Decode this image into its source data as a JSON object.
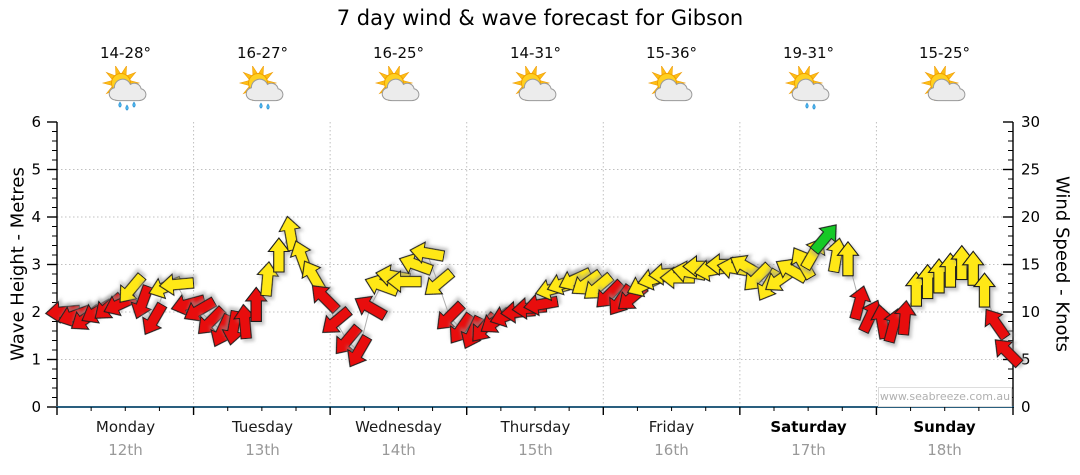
{
  "title": "7 day wind & wave forecast for Gibson",
  "watermark": "www.seabreeze.com.au",
  "axis_left": {
    "label": "Wave Height - Metres",
    "ticks": [
      0,
      1,
      2,
      3,
      4,
      5,
      6
    ],
    "range": [
      0,
      6
    ]
  },
  "axis_right": {
    "label": "Wind Speed - Knots",
    "ticks": [
      0,
      5,
      10,
      15,
      20,
      25,
      30
    ],
    "range": [
      0,
      30
    ]
  },
  "days": [
    {
      "name": "Monday",
      "date": "12th",
      "temp": "14-28°",
      "weekend": false,
      "icon": {
        "type": "sun-cloud-showers",
        "drops": 3
      }
    },
    {
      "name": "Tuesday",
      "date": "13th",
      "temp": "16-27°",
      "weekend": false,
      "icon": {
        "type": "sun-cloud-showers",
        "drops": 2
      }
    },
    {
      "name": "Wednesday",
      "date": "14th",
      "temp": "16-25°",
      "weekend": false,
      "icon": {
        "type": "sun-cloud",
        "drops": 0
      }
    },
    {
      "name": "Thursday",
      "date": "15th",
      "temp": "14-31°",
      "weekend": false,
      "icon": {
        "type": "sun-cloud",
        "drops": 0
      }
    },
    {
      "name": "Friday",
      "date": "16th",
      "temp": "15-36°",
      "weekend": false,
      "icon": {
        "type": "sun-cloud",
        "drops": 0
      }
    },
    {
      "name": "Saturday",
      "date": "17th",
      "temp": "19-31°",
      "weekend": true,
      "icon": {
        "type": "sun-cloud-showers",
        "drops": 2
      }
    },
    {
      "name": "Sunday",
      "date": "18th",
      "temp": "15-25°",
      "weekend": true,
      "icon": {
        "type": "sun-cloud",
        "drops": 0
      }
    }
  ],
  "colors": {
    "arrow_red": "#e81010",
    "arrow_yellow": "#ffe819",
    "arrow_green": "#16c926",
    "arrow_outline": "#1c1c1c",
    "axis": "#000000",
    "bottom_axis": "#2a5f7f",
    "grid": "#c0c0c0",
    "connector": "#adadad",
    "date_text": "#999999"
  },
  "chart_data": {
    "type": "wind-barb-timeseries",
    "title": "7 day wind & wave forecast for Gibson",
    "ylabel_left": "Wave Height - Metres",
    "ylim_left": [
      0,
      6
    ],
    "ylabel_right": "Wind Speed - Knots",
    "ylim_right": [
      0,
      30
    ],
    "x_categories": [
      "Monday 12th",
      "Tuesday 13th",
      "Wednesday 14th",
      "Thursday 15th",
      "Friday 16th",
      "Saturday 17th",
      "Sunday 18th"
    ],
    "grid": "dotted, horizontal every 5 knots, vertical at day boundaries",
    "arrow_fields": [
      "hours_from_monday_00",
      "wind_speed_knots",
      "direction_deg_pointing_0N",
      "color"
    ],
    "arrows": [
      [
        1,
        10.0,
        265,
        "r"
      ],
      [
        3,
        9.6,
        250,
        "r"
      ],
      [
        5,
        9.3,
        235,
        "r"
      ],
      [
        7,
        10.0,
        240,
        "r"
      ],
      [
        9,
        10.5,
        230,
        "r"
      ],
      [
        11,
        10.8,
        245,
        "r"
      ],
      [
        13,
        12.4,
        220,
        "y"
      ],
      [
        15,
        11.0,
        200,
        "r"
      ],
      [
        17,
        9.2,
        210,
        "r"
      ],
      [
        19,
        12.6,
        250,
        "y"
      ],
      [
        21,
        12.9,
        265,
        "y"
      ],
      [
        23,
        10.8,
        255,
        "r"
      ],
      [
        25,
        10.2,
        240,
        "r"
      ],
      [
        27,
        9.0,
        225,
        "r"
      ],
      [
        29,
        8.0,
        205,
        "r"
      ],
      [
        31,
        8.3,
        190,
        "r"
      ],
      [
        33,
        9.0,
        355,
        "r"
      ],
      [
        35,
        10.8,
        0,
        "r"
      ],
      [
        37,
        13.5,
        5,
        "y"
      ],
      [
        39,
        16.0,
        0,
        "y"
      ],
      [
        41,
        18.3,
        350,
        "y"
      ],
      [
        43,
        15.8,
        340,
        "y"
      ],
      [
        45,
        13.8,
        330,
        "y"
      ],
      [
        47,
        11.5,
        315,
        "r"
      ],
      [
        49,
        9.0,
        230,
        "r"
      ],
      [
        51,
        7.0,
        220,
        "r"
      ],
      [
        53,
        5.8,
        210,
        "r"
      ],
      [
        55,
        10.5,
        300,
        "r"
      ],
      [
        57,
        12.8,
        290,
        "y"
      ],
      [
        59,
        13.8,
        280,
        "y"
      ],
      [
        61,
        13.2,
        270,
        "y"
      ],
      [
        63,
        15.0,
        290,
        "y"
      ],
      [
        65,
        16.2,
        280,
        "y"
      ],
      [
        67,
        13.0,
        230,
        "y"
      ],
      [
        69,
        9.5,
        225,
        "r"
      ],
      [
        71,
        8.2,
        215,
        "r"
      ],
      [
        73,
        7.8,
        205,
        "r"
      ],
      [
        75,
        8.3,
        220,
        "r"
      ],
      [
        77,
        9.0,
        235,
        "r"
      ],
      [
        79,
        9.6,
        250,
        "r"
      ],
      [
        81,
        10.0,
        265,
        "r"
      ],
      [
        83,
        10.4,
        265,
        "r"
      ],
      [
        85,
        10.8,
        260,
        "r"
      ],
      [
        87,
        12.4,
        255,
        "y"
      ],
      [
        89,
        13.0,
        250,
        "y"
      ],
      [
        91,
        13.4,
        245,
        "y"
      ],
      [
        93,
        13.0,
        235,
        "y"
      ],
      [
        95,
        12.6,
        230,
        "y"
      ],
      [
        97,
        11.8,
        225,
        "r"
      ],
      [
        99,
        11.2,
        215,
        "r"
      ],
      [
        101,
        11.5,
        230,
        "r"
      ],
      [
        103,
        12.8,
        245,
        "y"
      ],
      [
        105,
        13.5,
        255,
        "y"
      ],
      [
        107,
        14.0,
        265,
        "y"
      ],
      [
        109,
        13.6,
        270,
        "y"
      ],
      [
        111,
        14.2,
        280,
        "y"
      ],
      [
        113,
        14.8,
        270,
        "y"
      ],
      [
        115,
        14.4,
        260,
        "y"
      ],
      [
        117,
        15.0,
        270,
        "y"
      ],
      [
        119,
        14.6,
        280,
        "y"
      ],
      [
        121,
        14.8,
        300,
        "y"
      ],
      [
        123,
        13.6,
        225,
        "y"
      ],
      [
        125,
        12.8,
        210,
        "y"
      ],
      [
        127,
        13.4,
        235,
        "y"
      ],
      [
        129,
        14.4,
        300,
        "y"
      ],
      [
        131,
        15.2,
        330,
        "y"
      ],
      [
        133,
        16.2,
        30,
        "y"
      ],
      [
        135,
        17.8,
        40,
        "g"
      ],
      [
        137,
        16.0,
        10,
        "y"
      ],
      [
        139,
        15.6,
        0,
        "y"
      ],
      [
        141,
        11.0,
        15,
        "r"
      ],
      [
        143,
        9.6,
        25,
        "r"
      ],
      [
        145,
        9.0,
        350,
        "r"
      ],
      [
        147,
        8.6,
        15,
        "r"
      ],
      [
        149,
        9.4,
        5,
        "r"
      ],
      [
        151,
        12.4,
        0,
        "y"
      ],
      [
        153,
        13.2,
        0,
        "y"
      ],
      [
        155,
        13.8,
        0,
        "y"
      ],
      [
        157,
        14.4,
        0,
        "y"
      ],
      [
        159,
        15.2,
        0,
        "y"
      ],
      [
        161,
        14.6,
        0,
        "y"
      ],
      [
        163,
        12.3,
        0,
        "y"
      ],
      [
        165,
        8.8,
        325,
        "r"
      ],
      [
        167,
        5.8,
        315,
        "r"
      ]
    ]
  }
}
